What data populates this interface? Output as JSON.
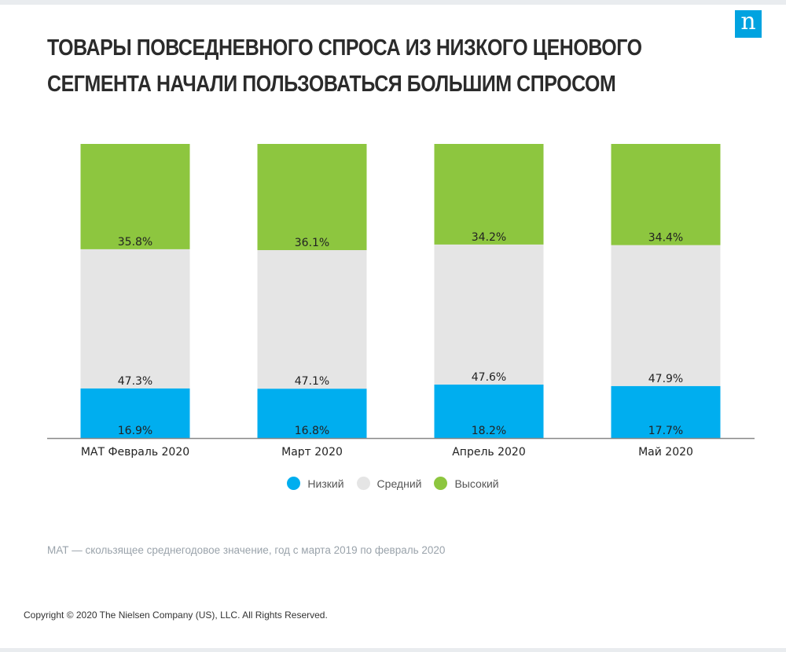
{
  "header": {
    "title_line1": "ТОВАРЫ ПОВСЕДНЕВНОГО СПРОСА ИЗ НИЗКОГО ЦЕНОВОГО",
    "title_line2": "СЕГМЕНТА НАЧАЛИ ПОЛЬЗОВАТЬСЯ БОЛЬШИМ СПРОСОМ",
    "logo_letter": "n"
  },
  "chart_data": {
    "type": "bar",
    "stacked": true,
    "categories": [
      "МАТ Февраль 2020",
      "Март 2020",
      "Апрель 2020",
      "Май 2020"
    ],
    "series": [
      {
        "name": "Низкий",
        "values": [
          16.9,
          16.8,
          18.2,
          17.7
        ],
        "labels": [
          "16.9%",
          "16.8%",
          "18.2%",
          "17.7%"
        ],
        "color": "#00aeef"
      },
      {
        "name": "Средний",
        "values": [
          47.3,
          47.1,
          47.6,
          47.9
        ],
        "labels": [
          "47.3%",
          "47.1%",
          "47.6%",
          "47.9%"
        ],
        "color": "#e5e5e5"
      },
      {
        "name": "Высокий",
        "values": [
          35.8,
          36.1,
          34.2,
          34.4
        ],
        "labels": [
          "35.8%",
          "36.1%",
          "34.2%",
          "34.4%"
        ],
        "color": "#8dc63f"
      }
    ],
    "ylim": [
      0,
      100
    ],
    "legend_position": "bottom"
  },
  "footer": {
    "note": "МАТ — скользящее среднегодовое значение, год с марта 2019 по февраль 2020",
    "copyright": "Copyright © 2020 The Nielsen Company (US), LLC. All Rights Reserved."
  },
  "colors": {
    "brand": "#00a3e0",
    "axis": "#888888"
  }
}
